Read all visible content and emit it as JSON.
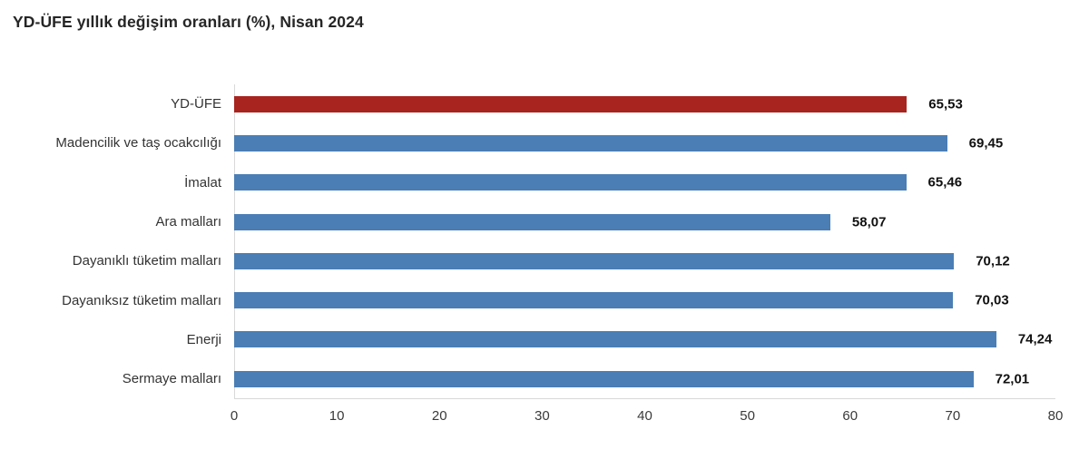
{
  "chart_data": {
    "type": "bar",
    "orientation": "horizontal",
    "title": "YD-ÜFE yıllık değişim oranları (%), Nisan 2024",
    "categories": [
      "YD-ÜFE",
      "Madencilik ve taş ocakcılığı",
      "İmalat",
      "Ara malları",
      "Dayanıklı tüketim malları",
      "Dayanıksız tüketim malları",
      "Enerji",
      "Sermaye malları"
    ],
    "values": [
      65.53,
      69.45,
      65.46,
      58.07,
      70.12,
      70.03,
      74.24,
      72.01
    ],
    "value_labels": [
      "65,53",
      "69,45",
      "65,46",
      "58,07",
      "70,12",
      "70,03",
      "74,24",
      "72,01"
    ],
    "highlight_index": 0,
    "xlabel": "",
    "ylabel": "",
    "xlim": [
      0,
      80
    ],
    "x_ticks": [
      0,
      10,
      20,
      30,
      40,
      50,
      60,
      70,
      80
    ],
    "grid": "off",
    "legend": "none"
  },
  "colors": {
    "highlight_bar": "#a8241f",
    "default_bar": "#4a7eb5",
    "axis_line": "#d9d9d9",
    "title_text": "#262626",
    "category_text": "#333333",
    "value_text": "#111111",
    "tick_text": "#3a3a3a"
  }
}
